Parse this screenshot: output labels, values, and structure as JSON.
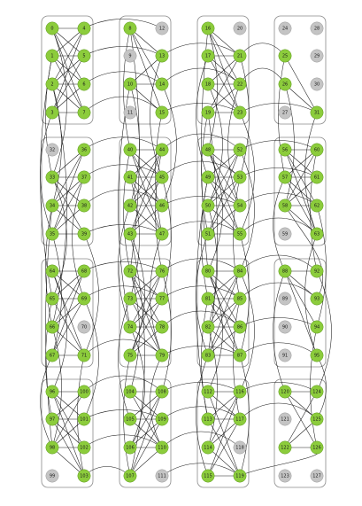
{
  "diagram": {
    "cell_groups": [
      {
        "nodes": [
          "0",
          "1",
          "2",
          "3",
          "4",
          "5",
          "6",
          "7"
        ],
        "off": []
      },
      {
        "nodes": [
          "8",
          "9",
          "10",
          "11",
          "12",
          "13",
          "14",
          "15"
        ],
        "off": [
          "9",
          "11",
          "12"
        ]
      },
      {
        "nodes": [
          "16",
          "17",
          "18",
          "19",
          "20",
          "21",
          "22",
          "23"
        ],
        "off": [
          "20"
        ]
      },
      {
        "nodes": [
          "24",
          "25",
          "26",
          "27",
          "28",
          "29",
          "30",
          "31"
        ],
        "off": [
          "24",
          "27",
          "28",
          "29",
          "30"
        ]
      },
      {
        "nodes": [
          "32",
          "33",
          "34",
          "35",
          "36",
          "37",
          "38",
          "39"
        ],
        "off": [
          "32"
        ]
      },
      {
        "nodes": [
          "40",
          "41",
          "42",
          "43",
          "44",
          "45",
          "46",
          "47"
        ],
        "off": []
      },
      {
        "nodes": [
          "48",
          "49",
          "50",
          "51",
          "52",
          "53",
          "54",
          "55"
        ],
        "off": []
      },
      {
        "nodes": [
          "56",
          "57",
          "58",
          "59",
          "60",
          "61",
          "62",
          "63"
        ],
        "off": [
          "59"
        ]
      },
      {
        "nodes": [
          "64",
          "65",
          "66",
          "67",
          "68",
          "69",
          "70",
          "71"
        ],
        "off": [
          "70"
        ]
      },
      {
        "nodes": [
          "72",
          "73",
          "74",
          "75",
          "76",
          "77",
          "78",
          "79"
        ],
        "off": []
      },
      {
        "nodes": [
          "80",
          "81",
          "82",
          "83",
          "84",
          "85",
          "86",
          "87"
        ],
        "off": []
      },
      {
        "nodes": [
          "88",
          "89",
          "90",
          "91",
          "92",
          "93",
          "94",
          "95"
        ],
        "off": [
          "89",
          "90",
          "91"
        ]
      },
      {
        "nodes": [
          "96",
          "97",
          "98",
          "99",
          "100",
          "101",
          "102",
          "103"
        ],
        "off": [
          "99"
        ]
      },
      {
        "nodes": [
          "104",
          "105",
          "106",
          "107",
          "108",
          "109",
          "110",
          "111"
        ],
        "off": [
          "111"
        ]
      },
      {
        "nodes": [
          "112",
          "113",
          "114",
          "115",
          "116",
          "117",
          "118",
          "119"
        ],
        "off": [
          "118"
        ]
      },
      {
        "nodes": [
          "120",
          "121",
          "122",
          "123",
          "124",
          "125",
          "126",
          "127"
        ],
        "off": [
          "121",
          "123",
          "127"
        ]
      }
    ],
    "node_color_active": "#8ccc3c",
    "node_color_inactive": "#c4c4c4",
    "edge_color": "#1a1a1a",
    "inter_cell_edges": [
      [
        "5",
        "13"
      ],
      [
        "6",
        "14"
      ],
      [
        "7",
        "15"
      ],
      [
        "4",
        "12"
      ],
      [
        "13",
        "21"
      ],
      [
        "14",
        "22"
      ],
      [
        "15",
        "23"
      ],
      [
        "21",
        "25"
      ],
      [
        "22",
        "26"
      ],
      [
        "23",
        "31"
      ],
      [
        "37",
        "45"
      ],
      [
        "38",
        "46"
      ],
      [
        "39",
        "47"
      ],
      [
        "36",
        "44"
      ],
      [
        "45",
        "53"
      ],
      [
        "46",
        "54"
      ],
      [
        "47",
        "55"
      ],
      [
        "44",
        "52"
      ],
      [
        "53",
        "61"
      ],
      [
        "54",
        "62"
      ],
      [
        "55",
        "63"
      ],
      [
        "52",
        "60"
      ],
      [
        "69",
        "77"
      ],
      [
        "71",
        "79"
      ],
      [
        "68",
        "76"
      ],
      [
        "77",
        "85"
      ],
      [
        "78",
        "86"
      ],
      [
        "79",
        "87"
      ],
      [
        "76",
        "84"
      ],
      [
        "85",
        "93"
      ],
      [
        "86",
        "94"
      ],
      [
        "87",
        "95"
      ],
      [
        "84",
        "92"
      ],
      [
        "101",
        "109"
      ],
      [
        "102",
        "110"
      ],
      [
        "100",
        "108"
      ],
      [
        "103",
        "107"
      ],
      [
        "109",
        "117"
      ],
      [
        "110",
        "118"
      ],
      [
        "108",
        "116"
      ],
      [
        "111",
        "119"
      ],
      [
        "117",
        "125"
      ],
      [
        "116",
        "124"
      ],
      [
        "119",
        "126"
      ],
      [
        "1",
        "33"
      ],
      [
        "2",
        "34"
      ],
      [
        "3",
        "35"
      ],
      [
        "0",
        "33"
      ],
      [
        "8",
        "40"
      ],
      [
        "10",
        "42"
      ],
      [
        "13",
        "45"
      ],
      [
        "14",
        "46"
      ],
      [
        "15",
        "47"
      ],
      [
        "16",
        "48"
      ],
      [
        "17",
        "49"
      ],
      [
        "18",
        "50"
      ],
      [
        "19",
        "51"
      ],
      [
        "21",
        "53"
      ],
      [
        "22",
        "54"
      ],
      [
        "23",
        "55"
      ],
      [
        "25",
        "57"
      ],
      [
        "26",
        "58"
      ],
      [
        "31",
        "63"
      ],
      [
        "33",
        "65"
      ],
      [
        "34",
        "66"
      ],
      [
        "35",
        "67"
      ],
      [
        "37",
        "69"
      ],
      [
        "39",
        "71"
      ],
      [
        "40",
        "72"
      ],
      [
        "41",
        "73"
      ],
      [
        "42",
        "74"
      ],
      [
        "43",
        "75"
      ],
      [
        "44",
        "76"
      ],
      [
        "45",
        "77"
      ],
      [
        "47",
        "79"
      ],
      [
        "48",
        "80"
      ],
      [
        "49",
        "81"
      ],
      [
        "50",
        "82"
      ],
      [
        "51",
        "83"
      ],
      [
        "52",
        "84"
      ],
      [
        "53",
        "85"
      ],
      [
        "55",
        "87"
      ],
      [
        "57",
        "88"
      ],
      [
        "58",
        "93"
      ],
      [
        "60",
        "92"
      ],
      [
        "62",
        "94"
      ],
      [
        "63",
        "95"
      ],
      [
        "64",
        "96"
      ],
      [
        "65",
        "97"
      ],
      [
        "66",
        "98"
      ],
      [
        "67",
        "98"
      ],
      [
        "69",
        "101"
      ],
      [
        "71",
        "103"
      ],
      [
        "72",
        "104"
      ],
      [
        "73",
        "105"
      ],
      [
        "74",
        "106"
      ],
      [
        "75",
        "107"
      ],
      [
        "76",
        "108"
      ],
      [
        "79",
        "110"
      ],
      [
        "80",
        "112"
      ],
      [
        "81",
        "113"
      ],
      [
        "82",
        "114"
      ],
      [
        "83",
        "115"
      ],
      [
        "84",
        "116"
      ],
      [
        "85",
        "117"
      ],
      [
        "87",
        "119"
      ],
      [
        "88",
        "120"
      ],
      [
        "92",
        "124"
      ],
      [
        "94",
        "126"
      ],
      [
        "95",
        "125"
      ],
      [
        "1",
        "65"
      ],
      [
        "2",
        "66"
      ],
      [
        "34",
        "98"
      ],
      [
        "8",
        "72"
      ],
      [
        "10",
        "74"
      ],
      [
        "43",
        "107"
      ],
      [
        "16",
        "80"
      ],
      [
        "19",
        "83"
      ],
      [
        "49",
        "113"
      ]
    ]
  }
}
